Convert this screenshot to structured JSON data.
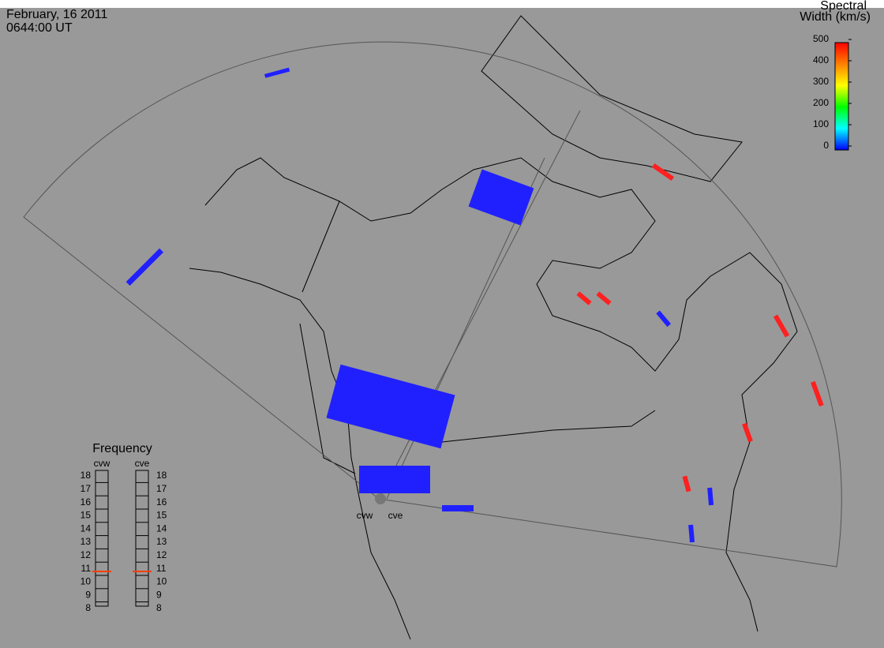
{
  "header": {
    "date": "February, 16 2011",
    "time": "0644:00 UT"
  },
  "colorbar": {
    "title": [
      "Spectral",
      "Width (km/s)"
    ],
    "lim": [
      0,
      500
    ],
    "ticks": [
      0,
      100,
      200,
      300,
      400,
      500
    ]
  },
  "frequency": {
    "title": "Frequency",
    "lim": [
      8,
      18
    ],
    "ticks": [
      8,
      9,
      10,
      11,
      12,
      13,
      14,
      15,
      16,
      17,
      18
    ],
    "radars": [
      {
        "name": "cvw",
        "value": 10.8
      },
      {
        "name": "cve",
        "value": 10.8
      }
    ]
  },
  "sites": [
    "cvw",
    "cve"
  ]
}
